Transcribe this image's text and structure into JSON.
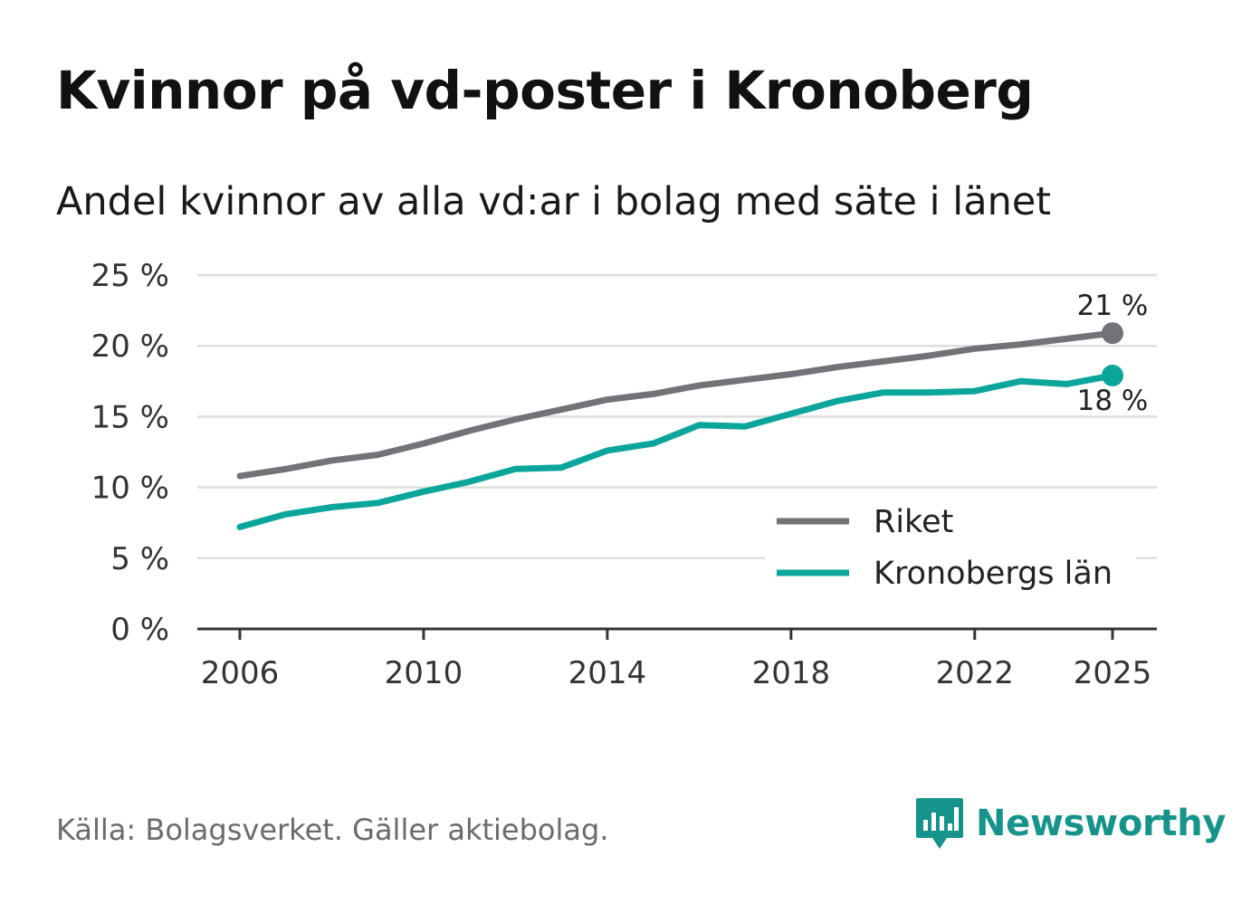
{
  "title": "Kvinnor på vd-poster i Kronoberg",
  "subtitle": "Andel kvinnor av alla vd:ar i bolag med säte i länet",
  "source": "Källa: Bolagsverket. Gäller aktiebolag.",
  "brand": {
    "name": "Newsworthy",
    "logo_icon": "bar-chart-speech-bubble-icon",
    "color": "#16938a"
  },
  "chart_data": {
    "type": "line",
    "x": [
      2006,
      2007,
      2008,
      2009,
      2010,
      2011,
      2012,
      2013,
      2014,
      2015,
      2016,
      2017,
      2018,
      2019,
      2020,
      2021,
      2022,
      2023,
      2024,
      2025
    ],
    "series": [
      {
        "name": "Riket",
        "color": "#737278",
        "values": [
          10.8,
          11.3,
          11.9,
          12.3,
          13.1,
          14.0,
          14.8,
          15.5,
          16.2,
          16.6,
          17.2,
          17.6,
          18.0,
          18.5,
          18.9,
          19.3,
          19.8,
          20.1,
          20.5,
          20.9
        ],
        "end_label": "21 %"
      },
      {
        "name": "Kronobergs län",
        "color": "#0aa59b",
        "values": [
          7.2,
          8.1,
          8.6,
          8.9,
          9.7,
          10.4,
          11.3,
          11.4,
          12.6,
          13.1,
          14.4,
          14.3,
          15.2,
          16.1,
          16.7,
          16.7,
          16.8,
          17.5,
          17.3,
          17.9
        ],
        "end_label": "18 %"
      }
    ],
    "ylim": [
      0,
      25
    ],
    "y_ticks": [
      0,
      5,
      10,
      15,
      20,
      25
    ],
    "y_tick_labels": [
      "0 %",
      "5 %",
      "10 %",
      "15 %",
      "20 %",
      "25 %"
    ],
    "x_ticks": [
      2006,
      2010,
      2014,
      2018,
      2022,
      2025
    ],
    "x_tick_labels": [
      "2006",
      "2010",
      "2014",
      "2018",
      "2022",
      "2025"
    ],
    "xlabel": "",
    "ylabel": "",
    "grid": true,
    "legend_position": "bottom-right"
  }
}
